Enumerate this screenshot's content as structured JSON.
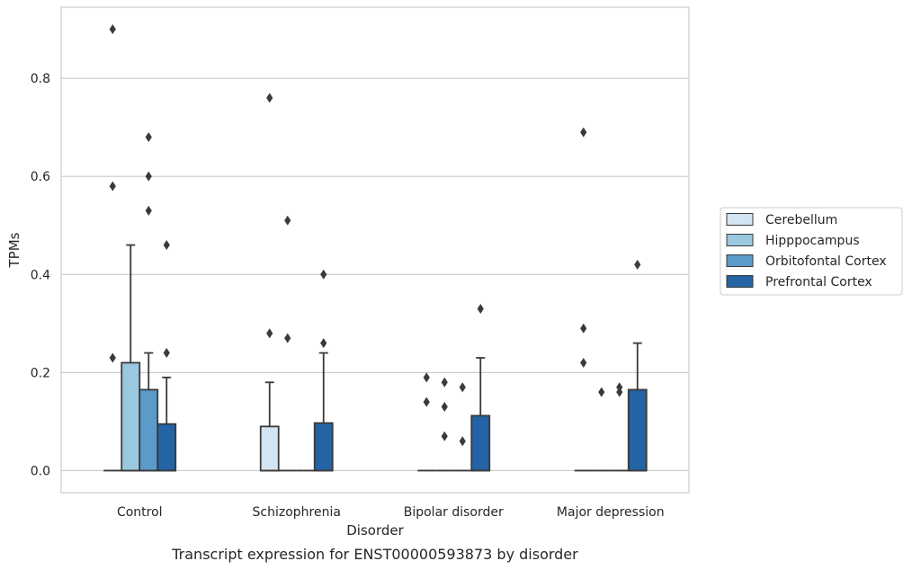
{
  "chart_data": {
    "type": "box",
    "xlabel": "Disorder",
    "ylabel": "TPMs",
    "caption": "Transcript expression for ENST00000593873 by disorder",
    "ylim": [
      -0.045,
      0.945
    ],
    "yticks": [
      0.0,
      0.2,
      0.4,
      0.6,
      0.8
    ],
    "ytick_labels": [
      "0.0",
      "0.2",
      "0.4",
      "0.6",
      "0.8"
    ],
    "grid": "horizontal",
    "legend_position": "right",
    "categories": [
      "Control",
      "Schizophrenia",
      "Bipolar disorder",
      "Major depression"
    ],
    "series": [
      {
        "name": "Cerebellum",
        "color": "#d3e4f3",
        "boxes": [
          {
            "q1": 0.0,
            "median": 0.0,
            "q3": 0.0,
            "whisker_high": 0.0,
            "outliers": [
              0.9,
              0.58,
              0.23
            ]
          },
          {
            "q1": 0.0,
            "median": 0.0,
            "q3": 0.09,
            "whisker_high": 0.18,
            "outliers": [
              0.76,
              0.28
            ]
          },
          {
            "q1": 0.0,
            "median": 0.0,
            "q3": 0.0,
            "whisker_high": 0.0,
            "outliers": [
              0.19,
              0.14
            ]
          },
          {
            "q1": 0.0,
            "median": 0.0,
            "q3": 0.0,
            "whisker_high": 0.0,
            "outliers": [
              0.69,
              0.29,
              0.22
            ]
          }
        ]
      },
      {
        "name": "Hipppocampus",
        "color": "#9ac8e0",
        "boxes": [
          {
            "q1": 0.0,
            "median": 0.0,
            "q3": 0.22,
            "whisker_high": 0.46,
            "outliers": []
          },
          {
            "q1": 0.0,
            "median": 0.0,
            "q3": 0.0,
            "whisker_high": 0.0,
            "outliers": [
              0.51,
              0.27
            ]
          },
          {
            "q1": 0.0,
            "median": 0.0,
            "q3": 0.0,
            "whisker_high": 0.0,
            "outliers": [
              0.18,
              0.13,
              0.07
            ]
          },
          {
            "q1": 0.0,
            "median": 0.0,
            "q3": 0.0,
            "whisker_high": 0.0,
            "outliers": [
              0.16
            ]
          }
        ]
      },
      {
        "name": "Orbitofontal Cortex",
        "color": "#5a9bc9",
        "boxes": [
          {
            "q1": 0.0,
            "median": 0.0,
            "q3": 0.165,
            "whisker_high": 0.24,
            "outliers": [
              0.68,
              0.6,
              0.53
            ]
          },
          {
            "q1": 0.0,
            "median": 0.0,
            "q3": 0.0,
            "whisker_high": 0.0,
            "outliers": []
          },
          {
            "q1": 0.0,
            "median": 0.0,
            "q3": 0.0,
            "whisker_high": 0.0,
            "outliers": [
              0.17,
              0.06
            ]
          },
          {
            "q1": 0.0,
            "median": 0.0,
            "q3": 0.0,
            "whisker_high": 0.0,
            "outliers": [
              0.17,
              0.16
            ]
          }
        ]
      },
      {
        "name": "Prefrontal Cortex",
        "color": "#2463a4",
        "boxes": [
          {
            "q1": 0.0,
            "median": 0.0,
            "q3": 0.095,
            "whisker_high": 0.19,
            "outliers": [
              0.46,
              0.24
            ]
          },
          {
            "q1": 0.0,
            "median": 0.0,
            "q3": 0.097,
            "whisker_high": 0.24,
            "outliers": [
              0.4,
              0.26
            ]
          },
          {
            "q1": 0.0,
            "median": 0.0,
            "q3": 0.112,
            "whisker_high": 0.23,
            "outliers": [
              0.33
            ]
          },
          {
            "q1": 0.0,
            "median": 0.0,
            "q3": 0.165,
            "whisker_high": 0.26,
            "outliers": [
              0.42
            ]
          }
        ]
      }
    ]
  }
}
